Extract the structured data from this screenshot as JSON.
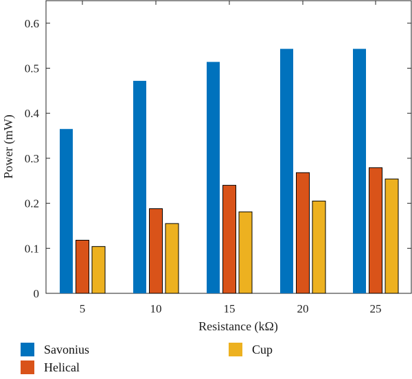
{
  "chart_data": {
    "type": "bar",
    "xlabel": "Resistance (kΩ)",
    "ylabel": "Power (mW)",
    "categories": [
      "5",
      "10",
      "15",
      "20",
      "25"
    ],
    "ylim": [
      0,
      0.65
    ],
    "yticks": [
      0,
      0.1,
      0.2,
      0.3,
      0.4,
      0.5,
      0.6
    ],
    "ytick_labels": [
      "0",
      "0.1",
      "0.2",
      "0.3",
      "0.4",
      "0.5",
      "0.6"
    ],
    "series": [
      {
        "name": "Savonius",
        "color": "#0072BD",
        "values": [
          0.365,
          0.472,
          0.514,
          0.543,
          0.543
        ]
      },
      {
        "name": "Helical",
        "color": "#D95319",
        "values": [
          0.118,
          0.188,
          0.24,
          0.268,
          0.279
        ]
      },
      {
        "name": "Cup",
        "color": "#EDB120",
        "values": [
          0.104,
          0.155,
          0.181,
          0.205,
          0.254
        ]
      }
    ],
    "grid": false,
    "legend": {
      "placement": "bottom-left",
      "columns": 2
    }
  }
}
